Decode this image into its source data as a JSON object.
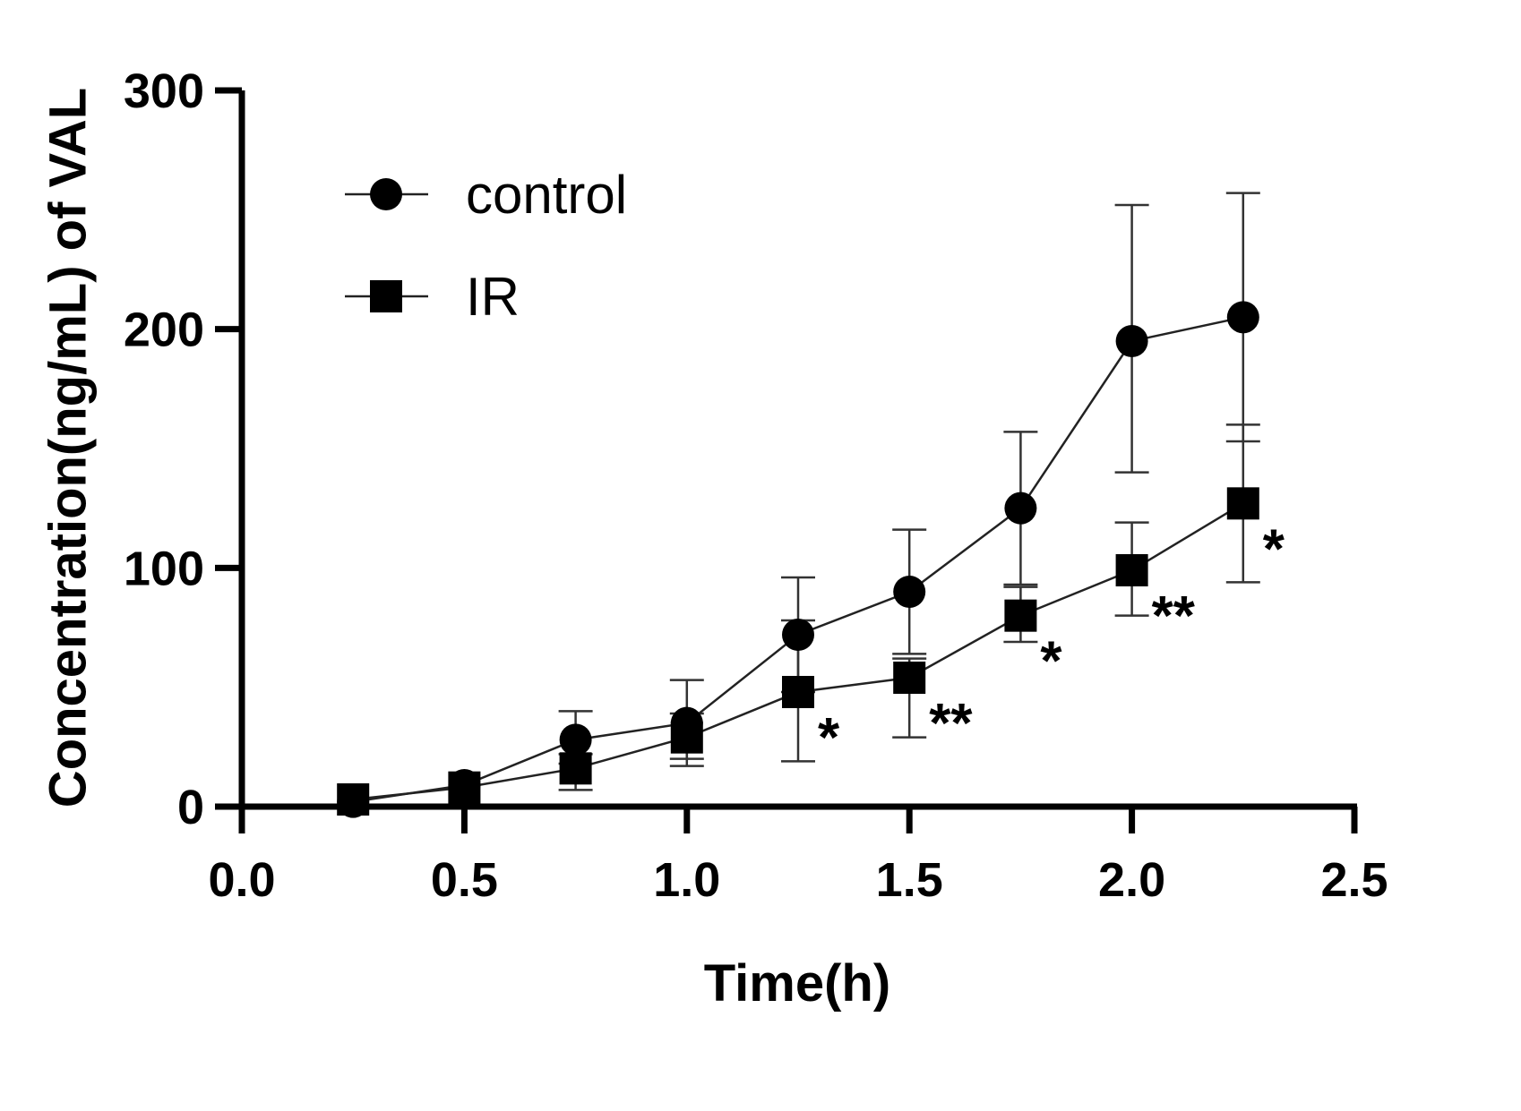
{
  "chart_data": {
    "type": "line",
    "title": "",
    "xlabel": "Time(h)",
    "ylabel": "Concentration(ng/mL) of VAL",
    "xlim": [
      0,
      2.5
    ],
    "ylim": [
      0,
      300
    ],
    "xticks": [
      0.0,
      0.5,
      1.0,
      1.5,
      2.0,
      2.5
    ],
    "xtick_labels": [
      "0.0",
      "0.5",
      "1.0",
      "1.5",
      "2.0",
      "2.5"
    ],
    "yticks": [
      0,
      100,
      200,
      300
    ],
    "ytick_labels": [
      "0",
      "100",
      "200",
      "300"
    ],
    "grid": false,
    "legend_position": "top-left",
    "x": [
      0.25,
      0.5,
      0.75,
      1.0,
      1.25,
      1.5,
      1.75,
      2.0,
      2.25
    ],
    "series": [
      {
        "name": "control",
        "marker": "circle",
        "values": [
          2,
          9,
          28,
          35,
          72,
          90,
          125,
          195,
          205
        ],
        "err_low": [
          2,
          9,
          18,
          20,
          48,
          64,
          93,
          140,
          153
        ],
        "err_high": [
          2,
          9,
          40,
          53,
          96,
          116,
          157,
          252,
          257
        ]
      },
      {
        "name": "IR",
        "marker": "square",
        "values": [
          3,
          8,
          16,
          29,
          48,
          54,
          80,
          99,
          127
        ],
        "err_low": [
          3,
          8,
          7,
          17,
          19,
          29,
          69,
          80,
          94
        ],
        "err_high": [
          3,
          8,
          22,
          39,
          78,
          62,
          92,
          119,
          160
        ]
      }
    ],
    "annotations": [
      {
        "x": 1.25,
        "y": 48,
        "text": "*"
      },
      {
        "x": 1.5,
        "y": 54,
        "text": "**"
      },
      {
        "x": 1.75,
        "y": 80,
        "text": "*"
      },
      {
        "x": 2.0,
        "y": 99,
        "text": "**"
      },
      {
        "x": 2.25,
        "y": 127,
        "text": "*"
      }
    ]
  }
}
